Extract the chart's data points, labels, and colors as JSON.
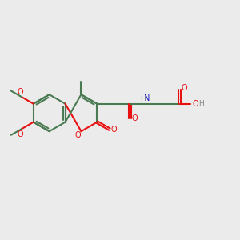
{
  "bg_color": "#ebebeb",
  "bond_color": "#4a7a52",
  "o_color": "#e81010",
  "n_color": "#1818cc",
  "h_color": "#888888",
  "lw": 1.5,
  "fig_w": 3.0,
  "fig_h": 3.0,
  "dpi": 100,
  "xlim": [
    0,
    10
  ],
  "ylim": [
    0,
    10
  ]
}
